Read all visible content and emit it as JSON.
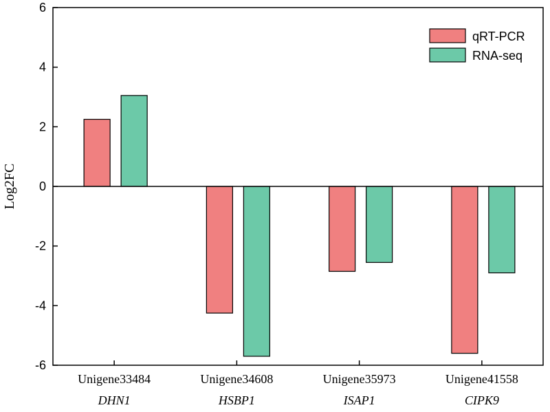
{
  "chart_data": {
    "type": "bar",
    "title": "",
    "xlabel": "",
    "ylabel": "Log2FC",
    "ylim": [
      -6,
      6
    ],
    "yticks": [
      -6,
      -4,
      -2,
      0,
      2,
      4,
      6
    ],
    "ytick_labels": [
      "-6",
      "-4",
      "-2",
      "0",
      "2",
      "4",
      "6"
    ],
    "categories": [
      "Unigene33484",
      "Unigene34608",
      "Unigene35973",
      "Unigene41558"
    ],
    "gene_names": [
      "DHN1",
      "HSBP1",
      "ISAP1",
      "CIPK9"
    ],
    "series": [
      {
        "name": "qRT-PCR",
        "color": "#f08080",
        "values": [
          2.25,
          -4.25,
          -2.85,
          -5.6
        ]
      },
      {
        "name": "RNA-seq",
        "color": "#6cc9a8",
        "values": [
          3.05,
          -5.7,
          -2.55,
          -2.9
        ]
      }
    ],
    "legend_position": "top-right",
    "grid": false
  }
}
